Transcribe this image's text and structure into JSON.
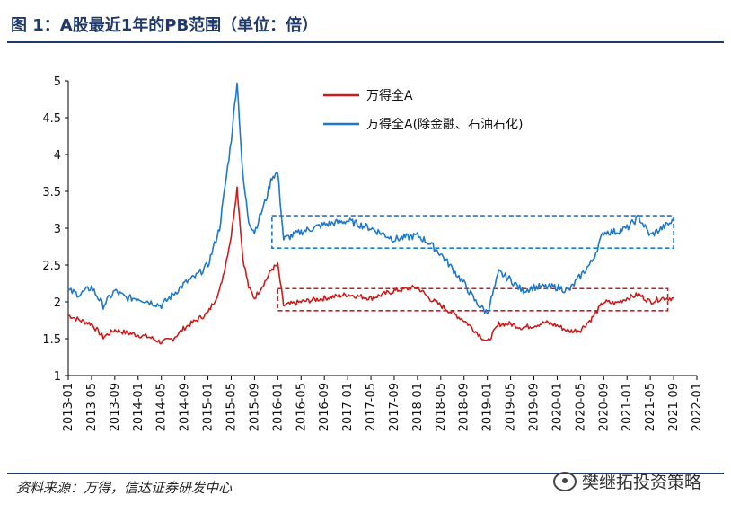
{
  "header": {
    "title": "图 1：A股最近1年的PB范围（单位：倍）"
  },
  "footer": {
    "source": "资料来源：万得，信达证券研发中心",
    "watermark": "樊继拓投资策略"
  },
  "colors": {
    "series_a": "#c81e1e",
    "series_b": "#1f78c8",
    "frame": "#1f3a6b"
  },
  "chart_data": {
    "type": "line",
    "title": "",
    "xlabel": "",
    "ylabel": "",
    "ylim": [
      1,
      5
    ],
    "yticks": [
      "1",
      "1.5",
      "2",
      "2.5",
      "3",
      "3.5",
      "4",
      "4.5",
      "5"
    ],
    "xticks": [
      "2013-01",
      "2013-05",
      "2013-09",
      "2014-01",
      "2014-05",
      "2014-09",
      "2015-01",
      "2015-05",
      "2015-09",
      "2016-01",
      "2016-05",
      "2016-09",
      "2017-01",
      "2017-05",
      "2017-09",
      "2018-01",
      "2018-05",
      "2018-09",
      "2019-01",
      "2019-05",
      "2019-09",
      "2020-01",
      "2020-05",
      "2020-09",
      "2021-01",
      "2021-05",
      "2021-09",
      "2022-01"
    ],
    "grid": false,
    "legend_position": "top-right",
    "series": [
      {
        "name": "万得全A",
        "x": [
          "2013-01",
          "2013-03",
          "2013-05",
          "2013-07",
          "2013-09",
          "2013-11",
          "2014-01",
          "2014-03",
          "2014-05",
          "2014-07",
          "2014-09",
          "2014-11",
          "2015-01",
          "2015-03",
          "2015-04",
          "2015-05",
          "2015-06",
          "2015-07",
          "2015-08",
          "2015-09",
          "2015-11",
          "2015-12",
          "2016-01",
          "2016-02",
          "2016-05",
          "2016-09",
          "2017-01",
          "2017-05",
          "2017-09",
          "2018-01",
          "2018-03",
          "2018-05",
          "2018-07",
          "2018-09",
          "2018-11",
          "2019-01",
          "2019-03",
          "2019-05",
          "2019-07",
          "2019-09",
          "2019-11",
          "2020-01",
          "2020-03",
          "2020-05",
          "2020-07",
          "2020-09",
          "2020-11",
          "2021-01",
          "2021-03",
          "2021-05",
          "2021-07",
          "2021-09"
        ],
        "values": [
          1.82,
          1.75,
          1.7,
          1.52,
          1.62,
          1.58,
          1.55,
          1.52,
          1.45,
          1.5,
          1.65,
          1.75,
          1.85,
          2.15,
          2.5,
          2.9,
          3.55,
          2.6,
          2.2,
          2.05,
          2.3,
          2.45,
          2.5,
          1.95,
          2.0,
          2.05,
          2.1,
          2.05,
          2.15,
          2.2,
          2.05,
          1.95,
          1.85,
          1.75,
          1.6,
          1.45,
          1.7,
          1.7,
          1.65,
          1.68,
          1.72,
          1.68,
          1.6,
          1.62,
          1.78,
          2.0,
          1.98,
          2.05,
          2.1,
          2.0,
          2.05,
          2.05
        ]
      },
      {
        "name": "万得全A(除金融、石油石化)",
        "x": [
          "2013-01",
          "2013-03",
          "2013-05",
          "2013-07",
          "2013-09",
          "2013-11",
          "2014-01",
          "2014-03",
          "2014-05",
          "2014-07",
          "2014-09",
          "2014-11",
          "2015-01",
          "2015-03",
          "2015-04",
          "2015-05",
          "2015-06",
          "2015-07",
          "2015-08",
          "2015-09",
          "2015-11",
          "2015-12",
          "2016-01",
          "2016-02",
          "2016-05",
          "2016-09",
          "2017-01",
          "2017-05",
          "2017-09",
          "2018-01",
          "2018-03",
          "2018-05",
          "2018-07",
          "2018-09",
          "2018-11",
          "2019-01",
          "2019-03",
          "2019-05",
          "2019-07",
          "2019-09",
          "2019-11",
          "2020-01",
          "2020-03",
          "2020-05",
          "2020-07",
          "2020-09",
          "2020-11",
          "2021-01",
          "2021-03",
          "2021-05",
          "2021-07",
          "2021-09"
        ],
        "values": [
          2.15,
          2.1,
          2.2,
          1.95,
          2.15,
          2.05,
          2.05,
          2.0,
          1.95,
          2.1,
          2.25,
          2.35,
          2.5,
          3.0,
          3.6,
          4.2,
          5.0,
          3.7,
          3.1,
          2.95,
          3.4,
          3.7,
          3.75,
          2.85,
          2.95,
          3.05,
          3.1,
          3.0,
          2.85,
          2.9,
          2.8,
          2.65,
          2.45,
          2.25,
          2.0,
          1.85,
          2.4,
          2.3,
          2.15,
          2.2,
          2.2,
          2.2,
          2.15,
          2.35,
          2.55,
          2.95,
          2.95,
          3.0,
          3.15,
          2.9,
          3.0,
          3.1
        ]
      }
    ]
  }
}
